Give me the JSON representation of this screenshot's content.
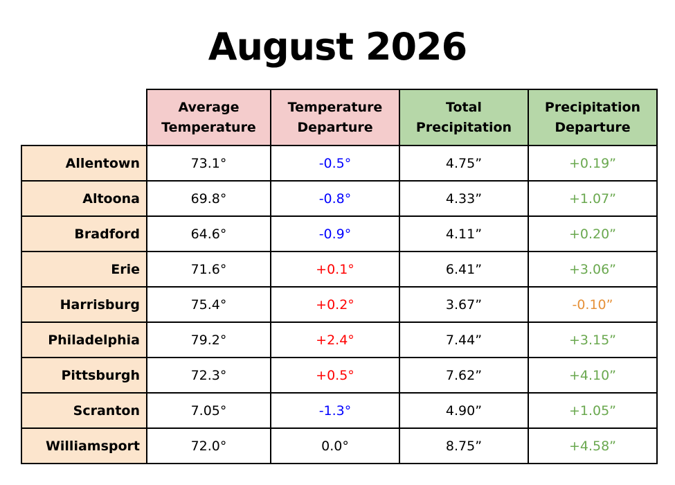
{
  "title": "August 2026",
  "colors": {
    "temperature_header_bg": "#f4cccc",
    "precipitation_header_bg": "#b6d7a8",
    "city_column_bg": "#fce5cd",
    "below_normal_temp": "#0000ff",
    "above_normal_temp": "#ff0000",
    "neutral": "#000000",
    "above_normal_precip": "#6aa84f",
    "below_normal_precip": "#e69138"
  },
  "table": {
    "headers": [
      {
        "line1": "Average",
        "line2": "Temperature"
      },
      {
        "line1": "Temperature",
        "line2": "Departure"
      },
      {
        "line1": "Total",
        "line2": "Precipitation"
      },
      {
        "line1": "Precipitation",
        "line2": "Departure"
      }
    ],
    "rows": [
      {
        "city": "Allentown",
        "avg_temp": "73.1°",
        "temp_dep": "-0.5°",
        "temp_dep_color": "#0000ff",
        "total_precip": "4.75”",
        "precip_dep": "+0.19”",
        "precip_dep_color": "#6aa84f"
      },
      {
        "city": "Altoona",
        "avg_temp": "69.8°",
        "temp_dep": "-0.8°",
        "temp_dep_color": "#0000ff",
        "total_precip": "4.33”",
        "precip_dep": "+1.07”",
        "precip_dep_color": "#6aa84f"
      },
      {
        "city": "Bradford",
        "avg_temp": "64.6°",
        "temp_dep": "-0.9°",
        "temp_dep_color": "#0000ff",
        "total_precip": "4.11”",
        "precip_dep": "+0.20”",
        "precip_dep_color": "#6aa84f"
      },
      {
        "city": "Erie",
        "avg_temp": "71.6°",
        "temp_dep": "+0.1°",
        "temp_dep_color": "#ff0000",
        "total_precip": "6.41”",
        "precip_dep": "+3.06”",
        "precip_dep_color": "#6aa84f"
      },
      {
        "city": "Harrisburg",
        "avg_temp": "75.4°",
        "temp_dep": "+0.2°",
        "temp_dep_color": "#ff0000",
        "total_precip": "3.67”",
        "precip_dep": "-0.10”",
        "precip_dep_color": "#e69138"
      },
      {
        "city": "Philadelphia",
        "avg_temp": "79.2°",
        "temp_dep": "+2.4°",
        "temp_dep_color": "#ff0000",
        "total_precip": "7.44”",
        "precip_dep": "+3.15”",
        "precip_dep_color": "#6aa84f"
      },
      {
        "city": "Pittsburgh",
        "avg_temp": "72.3°",
        "temp_dep": "+0.5°",
        "temp_dep_color": "#ff0000",
        "total_precip": "7.62”",
        "precip_dep": "+4.10”",
        "precip_dep_color": "#6aa84f"
      },
      {
        "city": "Scranton",
        "avg_temp": "7.05°",
        "temp_dep": "-1.3°",
        "temp_dep_color": "#0000ff",
        "total_precip": "4.90”",
        "precip_dep": "+1.05”",
        "precip_dep_color": "#6aa84f"
      },
      {
        "city": "Williamsport",
        "avg_temp": "72.0°",
        "temp_dep": "0.0°",
        "temp_dep_color": "#000000",
        "total_precip": "8.75”",
        "precip_dep": "+4.58”",
        "precip_dep_color": "#6aa84f"
      }
    ]
  }
}
